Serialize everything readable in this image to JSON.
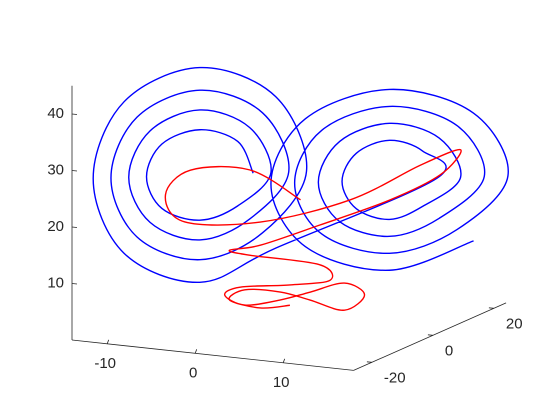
{
  "chart_data": {
    "type": "line3d",
    "xlim": [
      -14,
      18
    ],
    "ylim": [
      -26,
      24
    ],
    "zlim": [
      0,
      45
    ],
    "xticks": [
      -10,
      0,
      10
    ],
    "yticks": [
      -20,
      0,
      20
    ],
    "zticks": [
      10,
      20,
      30,
      40
    ],
    "series": [
      {
        "color": "#0000ff",
        "x": [
          -1.8,
          -3.1,
          -6.3,
          -9.5,
          -10.8,
          -9.5,
          -6.3,
          -3.1,
          -0.3,
          -2.1,
          -6.3,
          -10.5,
          -12.3,
          -10.5,
          -6.3,
          -2.1,
          1.2,
          -1.0,
          -6.3,
          -11.6,
          -13.8,
          -11.6,
          -6.3,
          -1.0,
          2.7,
          0.1,
          -6.3,
          -12.7,
          -15.3,
          -12.7,
          -6.3,
          0.1,
          13.7,
          12.5,
          9.7,
          6.9,
          5.7,
          6.9,
          9.7,
          12.5,
          15.7,
          13.9,
          9.7,
          5.5,
          3.7,
          5.5,
          9.7,
          13.9,
          17.7,
          15.4,
          9.7,
          4.0,
          1.7,
          4.0,
          9.7,
          15.4,
          19.7,
          16.8,
          9.7,
          2.6,
          -0.3,
          2.6,
          9.7,
          16.8
        ],
        "y": [
          -1.8,
          -3.1,
          -6.3,
          -9.5,
          -10.8,
          -9.5,
          -6.3,
          -3.1,
          -0.3,
          -2.1,
          -6.3,
          -10.5,
          -12.3,
          -10.5,
          -6.3,
          -2.1,
          1.2,
          -1.0,
          -6.3,
          -11.6,
          -13.8,
          -11.6,
          -6.3,
          -1.0,
          2.7,
          0.1,
          -6.3,
          -12.7,
          -15.3,
          -12.7,
          -6.3,
          0.1,
          13.7,
          12.5,
          9.7,
          6.9,
          5.7,
          6.9,
          9.7,
          12.5,
          15.7,
          13.9,
          9.7,
          5.5,
          3.7,
          5.5,
          9.7,
          13.9,
          17.7,
          15.4,
          9.7,
          4.0,
          1.7,
          4.0,
          9.7,
          15.4,
          19.7,
          16.8,
          9.7,
          2.6,
          -0.3,
          2.6,
          9.7,
          16.8
        ],
        "z": [
          25.8,
          31.5,
          33.8,
          31.5,
          25.8,
          20.1,
          17.8,
          20.1,
          25.8,
          33.9,
          37.3,
          33.9,
          25.8,
          17.7,
          14.3,
          17.7,
          25.8,
          36.4,
          40.8,
          36.4,
          25.8,
          15.2,
          10.8,
          15.2,
          25.8,
          39.2,
          44.8,
          39.2,
          25.8,
          12.4,
          6.8,
          12.4,
          23.8,
          28.7,
          30.8,
          28.7,
          23.8,
          18.9,
          16.8,
          18.9,
          23.8,
          30.9,
          33.8,
          30.9,
          23.8,
          16.7,
          13.8,
          16.7,
          23.8,
          33.0,
          36.8,
          33.0,
          23.8,
          14.6,
          10.8,
          14.6,
          23.8,
          35.1,
          39.8,
          35.1,
          23.8,
          12.5,
          7.8,
          12.5
        ]
      },
      {
        "color": "#ff0000",
        "x": [
          2.2,
          -2.1,
          -7.1,
          -9.2,
          -7.6,
          -1.2,
          6.4,
          12.3,
          15.7,
          14.0,
          9.7,
          3.8,
          -1.2,
          -3.8,
          -2.1,
          3.8,
          4.7,
          1.3,
          -2.9,
          -4.2,
          -2.5,
          0.5,
          3.0,
          5.9,
          7.6,
          5.9,
          3.0,
          0.5,
          -2.5,
          -3.8,
          -1.2,
          1.3
        ],
        "y": [
          2.2,
          -2.1,
          -7.1,
          -9.2,
          -7.6,
          -1.2,
          6.4,
          12.3,
          15.7,
          14.0,
          9.7,
          3.8,
          -1.2,
          -3.8,
          -2.1,
          3.8,
          4.7,
          1.3,
          -2.9,
          -4.2,
          -2.5,
          0.5,
          3.0,
          5.9,
          7.6,
          5.9,
          3.0,
          0.5,
          -2.5,
          -3.8,
          -1.2,
          1.3
        ],
        "z": [
          20.8,
          26.4,
          26.7,
          22.5,
          17.6,
          17.1,
          20.5,
          26.2,
          28.7,
          24.4,
          20.2,
          16.2,
          13.0,
          12.3,
          11.3,
          9.2,
          6.4,
          5.8,
          5.7,
          4.4,
          2.5,
          3.2,
          4.4,
          5.8,
          3.6,
          1.0,
          3.0,
          4.6,
          5.2,
          3.5,
          1.9,
          2.2
        ]
      }
    ]
  }
}
